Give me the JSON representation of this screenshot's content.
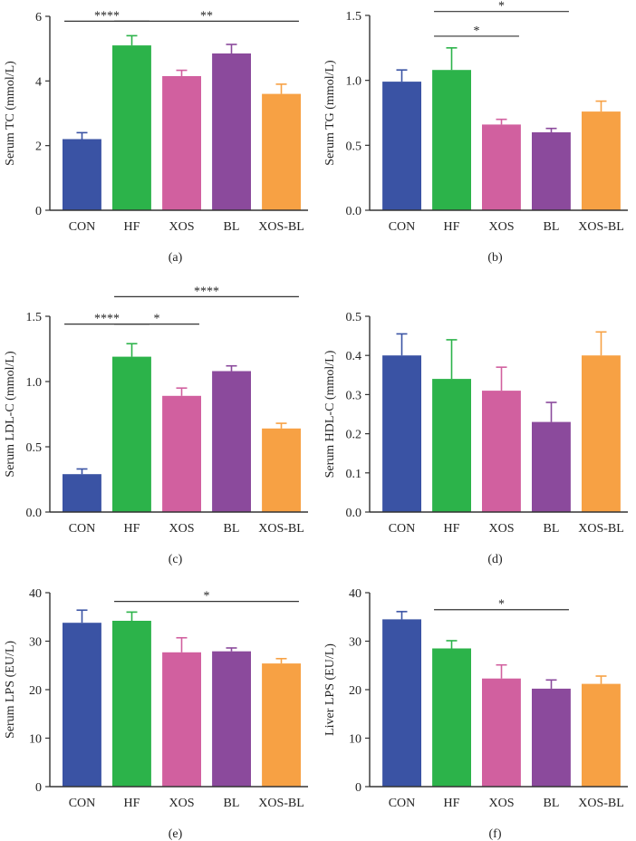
{
  "chart_data": [
    {
      "type": "bar",
      "panel_label": "(a)",
      "ylabel": "Serum TC (mmol/L)",
      "categories": [
        "CON",
        "HF",
        "XOS",
        "BL",
        "XOS-BL"
      ],
      "values": [
        2.2,
        5.1,
        4.15,
        4.85,
        3.6
      ],
      "errors": [
        0.2,
        0.3,
        0.18,
        0.28,
        0.3
      ],
      "ylim": [
        0,
        6
      ],
      "yticks": [
        "0",
        "2",
        "4",
        "6"
      ],
      "colors": [
        "#3a53a4",
        "#2cb34a",
        "#d1609f",
        "#8b4a9c",
        "#f7a144"
      ],
      "significance": [
        {
          "from": 0,
          "to": 1,
          "text": "****",
          "y": 5.85
        },
        {
          "from": 1,
          "to": 4,
          "text": "**",
          "y": 5.85
        }
      ]
    },
    {
      "type": "bar",
      "panel_label": "(b)",
      "ylabel": "Serum TG (mmol/L)",
      "categories": [
        "CON",
        "HF",
        "XOS",
        "BL",
        "XOS-BL"
      ],
      "values": [
        0.99,
        1.08,
        0.66,
        0.6,
        0.76
      ],
      "errors": [
        0.09,
        0.17,
        0.04,
        0.03,
        0.08
      ],
      "ylim": [
        0,
        1.5
      ],
      "yticks": [
        "0.0",
        "0.5",
        "1.0",
        "1.5"
      ],
      "colors": [
        "#3a53a4",
        "#2cb34a",
        "#d1609f",
        "#8b4a9c",
        "#f7a144"
      ],
      "significance": [
        {
          "from": 1,
          "to": 3,
          "text": "*",
          "y": 1.53
        },
        {
          "from": 1,
          "to": 2,
          "text": "*",
          "y": 1.34
        }
      ]
    },
    {
      "type": "bar",
      "panel_label": "(c)",
      "ylabel": "Serum LDL-C (mmol/L)",
      "categories": [
        "CON",
        "HF",
        "XOS",
        "BL",
        "XOS-BL"
      ],
      "values": [
        0.29,
        1.19,
        0.89,
        1.08,
        0.64
      ],
      "errors": [
        0.04,
        0.1,
        0.06,
        0.04,
        0.04
      ],
      "ylim": [
        0,
        1.5
      ],
      "yticks": [
        "0.0",
        "0.5",
        "1.0",
        "1.5"
      ],
      "colors": [
        "#3a53a4",
        "#2cb34a",
        "#d1609f",
        "#8b4a9c",
        "#f7a144"
      ],
      "significance": [
        {
          "from": 0,
          "to": 1,
          "text": "****",
          "y": 1.44
        },
        {
          "from": 1,
          "to": 2,
          "text": "*",
          "y": 1.44
        },
        {
          "from": 1,
          "to": 4,
          "text": "****",
          "y": 1.65
        }
      ]
    },
    {
      "type": "bar",
      "panel_label": "(d)",
      "ylabel": "Serum HDL-C (mmol/L)",
      "categories": [
        "CON",
        "HF",
        "XOS",
        "BL",
        "XOS-BL"
      ],
      "values": [
        0.4,
        0.34,
        0.31,
        0.23,
        0.4
      ],
      "errors": [
        0.055,
        0.1,
        0.06,
        0.05,
        0.06
      ],
      "ylim": [
        0,
        0.5
      ],
      "yticks": [
        "0.0",
        "0.1",
        "0.2",
        "0.3",
        "0.4",
        "0.5"
      ],
      "colors": [
        "#3a53a4",
        "#2cb34a",
        "#d1609f",
        "#8b4a9c",
        "#f7a144"
      ],
      "significance": []
    },
    {
      "type": "bar",
      "panel_label": "(e)",
      "ylabel": "Serum LPS (EU/L)",
      "categories": [
        "CON",
        "HF",
        "XOS",
        "BL",
        "XOS-BL"
      ],
      "values": [
        33.8,
        34.2,
        27.7,
        27.9,
        25.4
      ],
      "errors": [
        2.6,
        1.8,
        3.0,
        0.7,
        1.0
      ],
      "ylim": [
        0,
        40
      ],
      "yticks": [
        "0",
        "10",
        "20",
        "30",
        "40"
      ],
      "colors": [
        "#3a53a4",
        "#2cb34a",
        "#d1609f",
        "#8b4a9c",
        "#f7a144"
      ],
      "significance": [
        {
          "from": 1,
          "to": 4,
          "text": "*",
          "y": 38.2
        }
      ]
    },
    {
      "type": "bar",
      "panel_label": "(f)",
      "ylabel": "Liver LPS (EU/L)",
      "categories": [
        "CON",
        "HF",
        "XOS",
        "BL",
        "XOS-BL"
      ],
      "values": [
        34.5,
        28.5,
        22.3,
        20.2,
        21.2
      ],
      "errors": [
        1.6,
        1.6,
        2.8,
        1.8,
        1.6
      ],
      "ylim": [
        0,
        40
      ],
      "yticks": [
        "0",
        "10",
        "20",
        "30",
        "40"
      ],
      "colors": [
        "#3a53a4",
        "#2cb34a",
        "#d1609f",
        "#8b4a9c",
        "#f7a144"
      ],
      "significance": [
        {
          "from": 1,
          "to": 3,
          "text": "*",
          "y": 36.5
        }
      ]
    }
  ]
}
